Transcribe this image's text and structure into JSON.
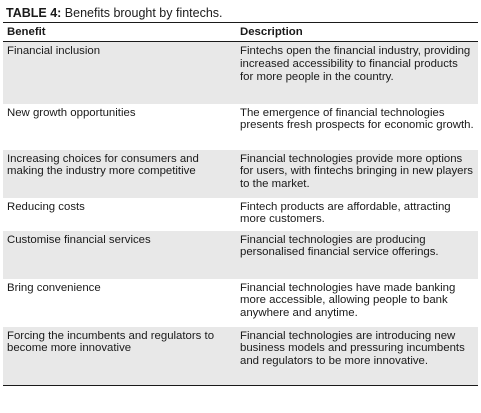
{
  "caption": {
    "label": "TABLE 4:",
    "text": " Benefits brought by fintechs."
  },
  "columns": {
    "benefit": "Benefit",
    "description": "Description"
  },
  "rows": [
    {
      "benefit": "Financial inclusion",
      "description": "Fintechs open the financial industry, providing increased accessibility to financial products for more people in the country."
    },
    {
      "benefit": "New growth opportunities",
      "description": "The emergence of financial technologies presents fresh prospects for economic growth."
    },
    {
      "benefit": "Increasing choices for consumers and making the industry more competitive",
      "description": "Financial technologies provide more options for users, with fintechs bringing in new players to the market."
    },
    {
      "benefit": "Reducing costs",
      "description": "Fintech products are affordable, attracting more customers."
    },
    {
      "benefit": "Customise financial services",
      "description": "Financial technologies are producing personalised financial service offerings."
    },
    {
      "benefit": "Bring convenience",
      "description": "Financial technologies have made banking more accessible, allowing people to bank anywhere and anytime."
    },
    {
      "benefit": "Forcing the incumbents and regulators to become more innovative",
      "description": "Financial technologies are introducing new business models and pressuring incumbents and regulators to be more innovative."
    }
  ]
}
